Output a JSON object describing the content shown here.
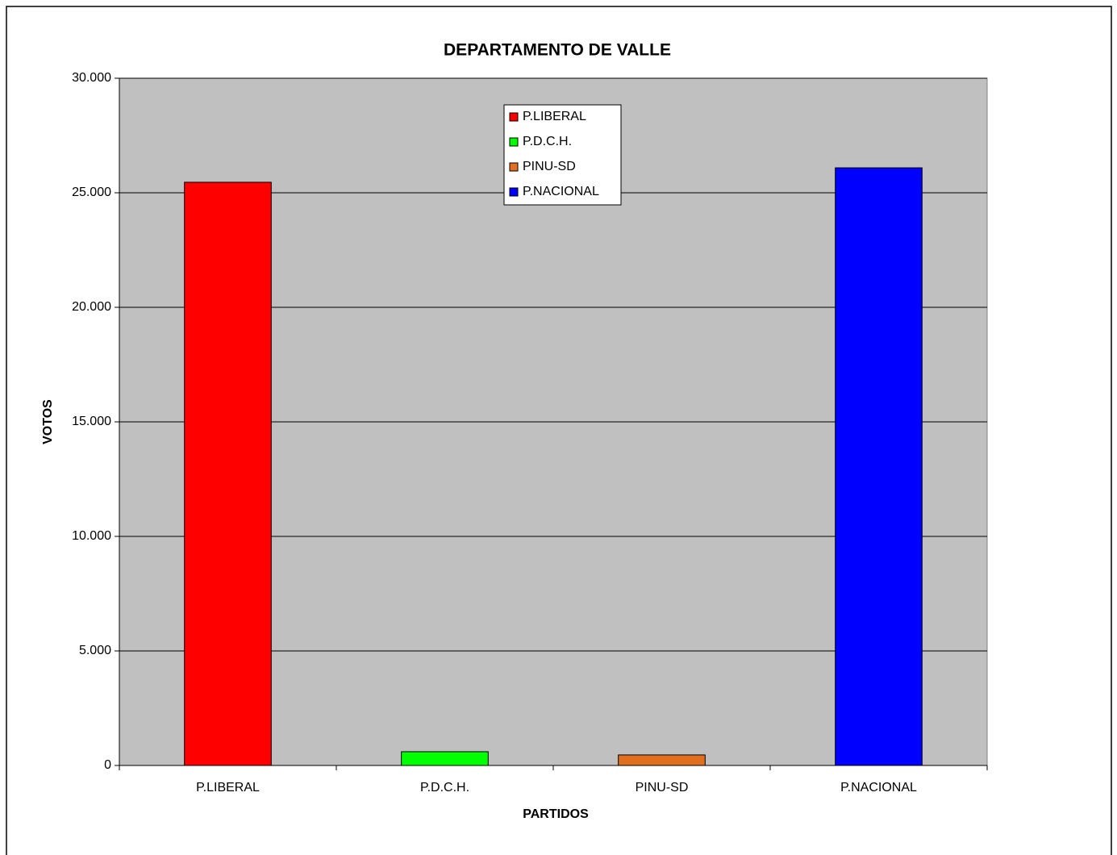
{
  "chart_data": {
    "type": "bar",
    "title": "DEPARTAMENTO DE VALLE",
    "x_label": "PARTIDOS",
    "y_label": "VOTOS",
    "categories": [
      "P.LIBERAL",
      "P.D.C.H.",
      "PINU-SD",
      "P.NACIONAL"
    ],
    "values": [
      25460,
      600,
      460,
      26090
    ],
    "colors": [
      "#ff0000",
      "#00ff00",
      "#e07020",
      "#0000ff"
    ],
    "ylim": [
      0,
      30000
    ],
    "yticks": [
      0,
      {
        "value": 5000,
        "label": "5.000"
      },
      {
        "value": 10000,
        "label": "10.000"
      },
      {
        "value": 15000,
        "label": "15.000"
      },
      {
        "value": 20000,
        "label": "20.000"
      },
      {
        "value": 25000,
        "label": "25.000"
      },
      {
        "value": 30000,
        "label": "30.000"
      }
    ],
    "grid": true,
    "legend": "top"
  }
}
